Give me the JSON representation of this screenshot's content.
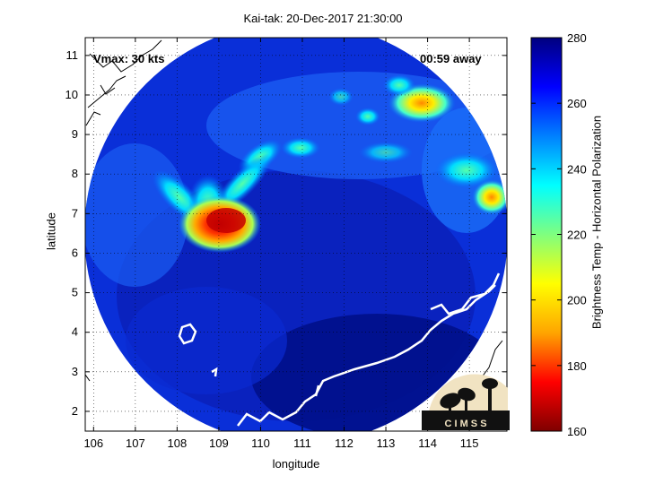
{
  "title": "Kai-tak: 20-Dec-2017 21:30:00",
  "annotations": {
    "vmax": "Vmax: 30 kts",
    "away": "00:59 away"
  },
  "xlabel": "longitude",
  "ylabel": "latitude",
  "colorbar": {
    "label": "Brightness Temp - Horizontal Polarization",
    "ticks": [
      280,
      260,
      240,
      220,
      200,
      180,
      160
    ],
    "range": [
      160,
      280
    ],
    "colors": [
      "#7f0000",
      "#ff0000",
      "#ffa500",
      "#ffff00",
      "#7fff7f",
      "#00ffff",
      "#0080ff",
      "#0000ff",
      "#00007f"
    ]
  },
  "axes": {
    "xticks": [
      "106",
      "107",
      "108",
      "109",
      "110",
      "111",
      "112",
      "113",
      "114",
      "115"
    ],
    "yticks": [
      "11",
      "10",
      "9",
      "8",
      "7",
      "6",
      "5",
      "4",
      "3",
      "2"
    ],
    "xlim": [
      105.8,
      115.9
    ],
    "ylim": [
      1.5,
      11.45
    ],
    "grid": "dotted"
  },
  "logo": {
    "text": "C I M S S"
  },
  "features": {
    "storm_center": {
      "lon": 109.0,
      "lat": 6.8,
      "min_temp": 185
    },
    "warm_background": 265
  }
}
